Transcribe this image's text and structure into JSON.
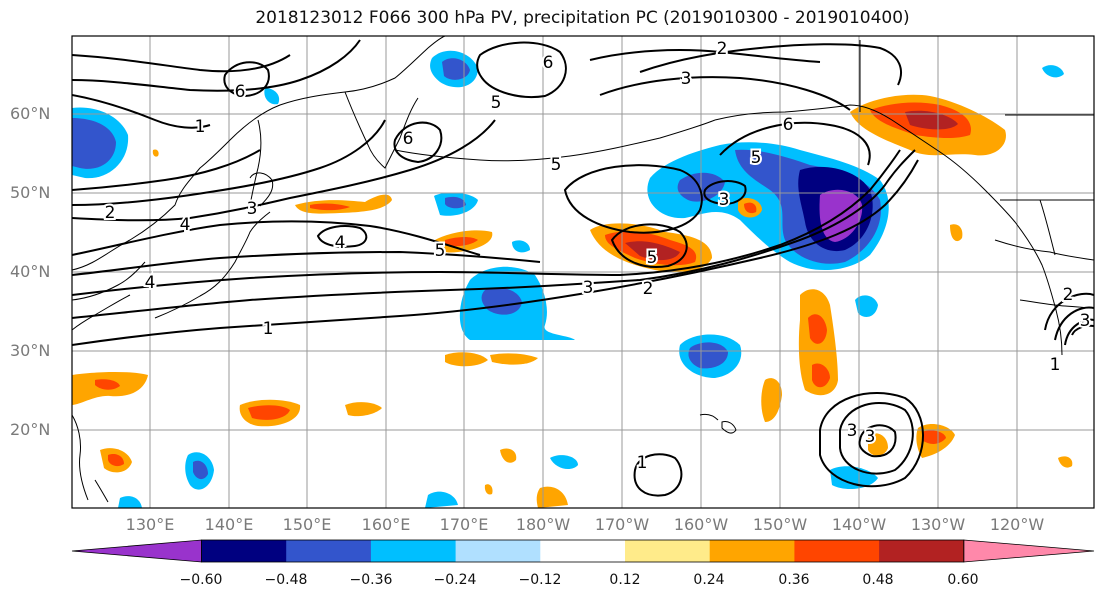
{
  "title": "2018123012 F066 300 hPa PV, precipitation PC (2019010300 - 2019010400)",
  "lat_labels": [
    "60°N",
    "50°N",
    "40°N",
    "30°N",
    "20°N"
  ],
  "lon_labels": [
    "130°E",
    "140°E",
    "150°E",
    "160°E",
    "170°E",
    "180°W",
    "170°W",
    "160°W",
    "150°W",
    "140°W",
    "130°W",
    "120°W"
  ],
  "contour_labels": [
    "1",
    "2",
    "3",
    "4",
    "5",
    "6"
  ],
  "colorbar": {
    "labels": [
      "−0.60",
      "−0.48",
      "−0.36",
      "−0.24",
      "−0.12",
      "0.12",
      "0.24",
      "0.36",
      "0.48",
      "0.60"
    ],
    "colors": [
      "#9933cc",
      "#000080",
      "#3355cc",
      "#00bfff",
      "#b0e0ff",
      "#ffffff",
      "#ffeb8a",
      "#ffa500",
      "#ff4500",
      "#b22222",
      "#ff88aa"
    ]
  },
  "colors": {
    "contour": "#000000",
    "grid": "#999999",
    "coast": "#000000"
  }
}
